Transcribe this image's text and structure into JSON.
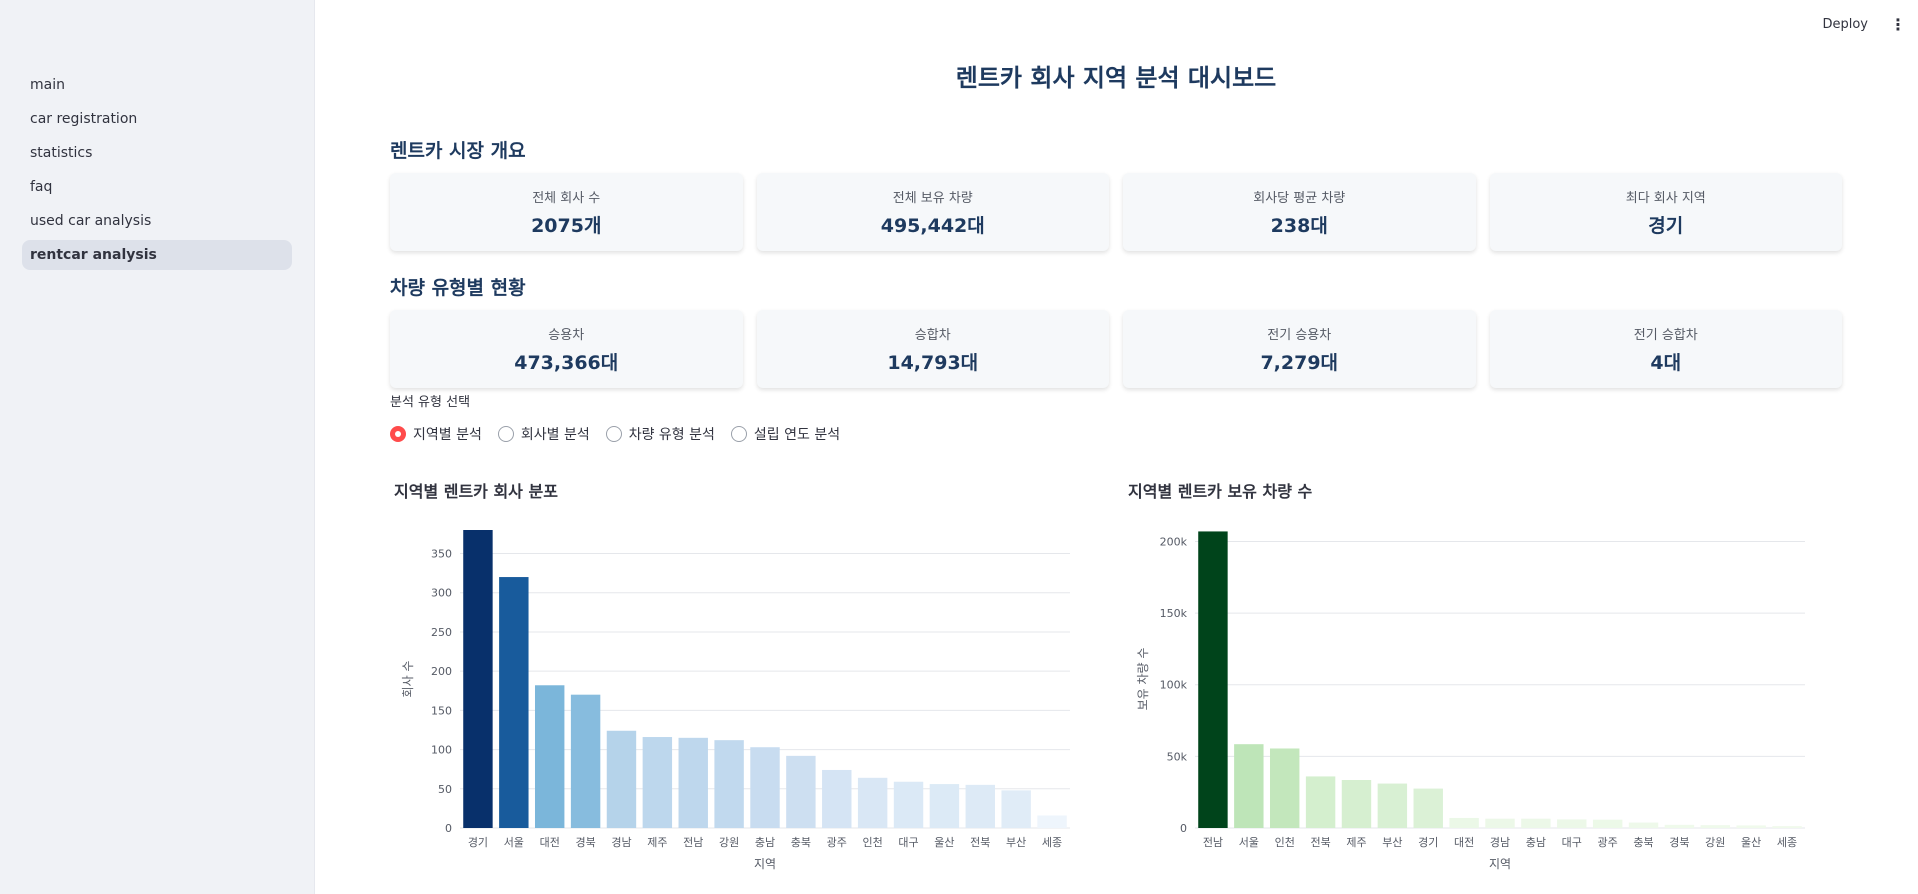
{
  "sidebar": {
    "items": [
      {
        "label": "main",
        "active": false
      },
      {
        "label": "car registration",
        "active": false
      },
      {
        "label": "statistics",
        "active": false
      },
      {
        "label": "faq",
        "active": false
      },
      {
        "label": "used car analysis",
        "active": false
      },
      {
        "label": "rentcar analysis",
        "active": true
      }
    ]
  },
  "topbar": {
    "deploy_label": "Deploy",
    "menu_icon": "kebab-menu-icon"
  },
  "page_title": "렌트카 회사 지역 분석 대시보드",
  "market_overview": {
    "title": "렌트카 시장 개요",
    "metrics": [
      {
        "label": "전체 회사 수",
        "value": "2075개"
      },
      {
        "label": "전체 보유 차량",
        "value": "495,442대"
      },
      {
        "label": "회사당 평균 차량",
        "value": "238대"
      },
      {
        "label": "최다 회사 지역",
        "value": "경기"
      }
    ]
  },
  "vehicle_types": {
    "title": "차량 유형별 현황",
    "metrics": [
      {
        "label": "승용차",
        "value": "473,366대"
      },
      {
        "label": "승합차",
        "value": "14,793대"
      },
      {
        "label": "전기 승용차",
        "value": "7,279대"
      },
      {
        "label": "전기 승합차",
        "value": "4대"
      }
    ]
  },
  "analysis_select": {
    "label": "분석 유형 선택",
    "options": [
      "지역별 분석",
      "회사별 분석",
      "차량 유형 분석",
      "설립 연도 분석"
    ],
    "selected": "지역별 분석",
    "accent": "#ff4b4b"
  },
  "chart_data": [
    {
      "type": "bar",
      "title": "지역별 렌트카 회사 분포",
      "xlabel": "지역",
      "ylabel": "회사 수",
      "ylim": [
        0,
        380
      ],
      "yticks": [
        0,
        50,
        100,
        150,
        200,
        250,
        300,
        350
      ],
      "ytick_labels": [
        "0",
        "50",
        "100",
        "150",
        "200",
        "250",
        "300",
        "350"
      ],
      "categories": [
        "경기",
        "서울",
        "대전",
        "경북",
        "경남",
        "제주",
        "전남",
        "강원",
        "충남",
        "충북",
        "광주",
        "인천",
        "대구",
        "울산",
        "전북",
        "부산",
        "세종"
      ],
      "values": [
        380,
        320,
        182,
        170,
        124,
        116,
        115,
        112,
        103,
        92,
        74,
        64,
        59,
        56,
        55,
        48,
        16
      ],
      "colorscale": "Blues",
      "grid": true
    },
    {
      "type": "bar",
      "title": "지역별 렌트카 보유 차량 수",
      "xlabel": "지역",
      "ylabel": "보유 차량 수",
      "ylim": [
        0,
        208000
      ],
      "yticks": [
        0,
        50000,
        100000,
        150000,
        200000
      ],
      "ytick_labels": [
        "0",
        "50k",
        "100k",
        "150k",
        "200k"
      ],
      "categories": [
        "전남",
        "서울",
        "인천",
        "전북",
        "제주",
        "부산",
        "경기",
        "대전",
        "경남",
        "충남",
        "대구",
        "광주",
        "충북",
        "경북",
        "강원",
        "울산",
        "세종"
      ],
      "values": [
        207000,
        58500,
        55500,
        36000,
        33500,
        31000,
        27500,
        7000,
        6500,
        6500,
        6000,
        5800,
        3800,
        2200,
        2000,
        1800,
        1300
      ],
      "colorscale": "Greens",
      "grid": true
    }
  ]
}
